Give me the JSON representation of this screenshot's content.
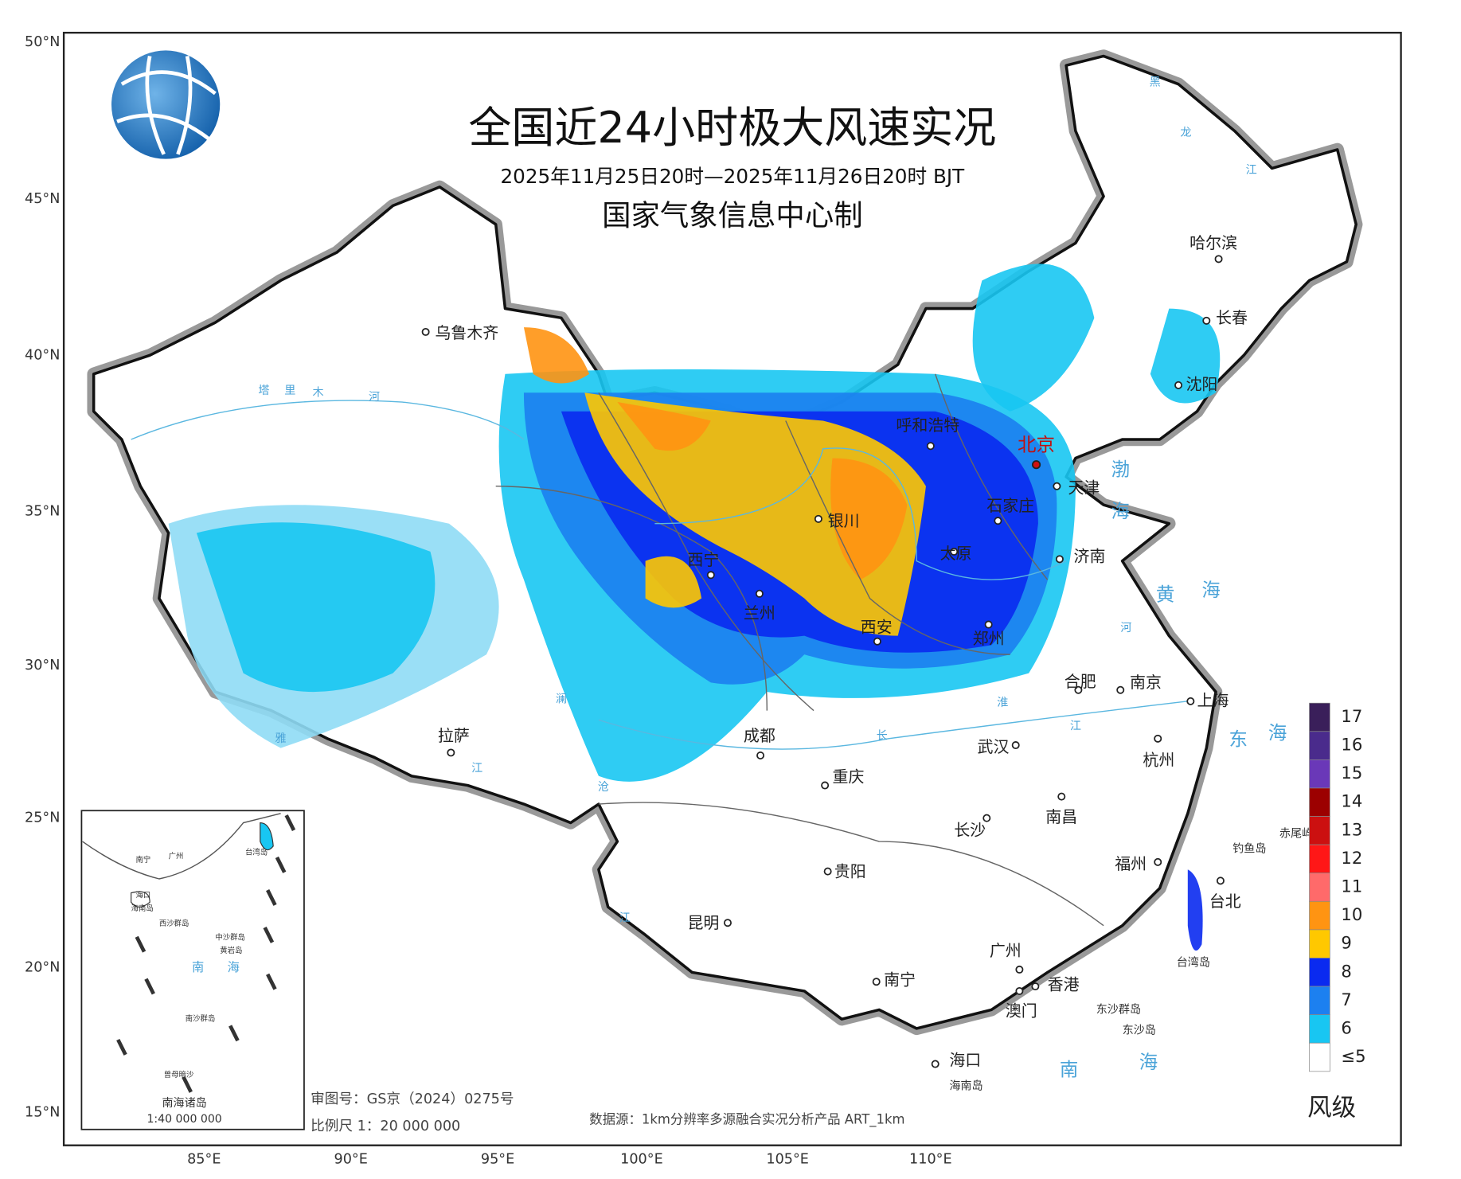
{
  "header": {
    "title": "全国近24小时极大风速实况",
    "subtitle": "2025年11月25日20时—2025年11月26日20时 BJT",
    "producer": "国家气象信息中心制"
  },
  "graticule": {
    "latitudes": [
      "50°N",
      "45°N",
      "40°N",
      "35°N",
      "30°N",
      "25°N",
      "20°N",
      "15°N"
    ],
    "longitudes": [
      "85°E",
      "90°E",
      "95°E",
      "100°E",
      "105°E",
      "110°E"
    ]
  },
  "cities": [
    "乌鲁木齐",
    "拉萨",
    "西宁",
    "兰州",
    "银川",
    "呼和浩特",
    "北京",
    "天津",
    "石家庄",
    "太原",
    "济南",
    "郑州",
    "西安",
    "成都",
    "重庆",
    "贵阳",
    "昆明",
    "南宁",
    "广州",
    "香港",
    "澳门",
    "海口",
    "长沙",
    "南昌",
    "武汉",
    "合肥",
    "南京",
    "上海",
    "杭州",
    "福州",
    "台北",
    "沈阳",
    "长春",
    "哈尔滨"
  ],
  "places": [
    "海南岛",
    "台湾岛",
    "钓鱼岛",
    "赤尾屿",
    "东沙群岛",
    "东沙岛"
  ],
  "seas": [
    "渤",
    "海",
    "黄",
    "海",
    "东",
    "海",
    "南",
    "海"
  ],
  "rivers": [
    "塔",
    "里",
    "木",
    "河",
    "黑",
    "龙",
    "江",
    "长",
    "江",
    "雅",
    "江",
    "澜",
    "沧",
    "江",
    "淮",
    "河"
  ],
  "legend": {
    "title": "风级",
    "levels": [
      {
        "label": "17",
        "color": "#3a1f5a"
      },
      {
        "label": "16",
        "color": "#4a2b8c"
      },
      {
        "label": "15",
        "color": "#6a38b8"
      },
      {
        "label": "14",
        "color": "#9c0000"
      },
      {
        "label": "13",
        "color": "#cc1010"
      },
      {
        "label": "12",
        "color": "#ff1717"
      },
      {
        "label": "11",
        "color": "#ff6a6a"
      },
      {
        "label": "10",
        "color": "#ff9412"
      },
      {
        "label": "9",
        "color": "#ffc800"
      },
      {
        "label": "8",
        "color": "#0a2af0"
      },
      {
        "label": "7",
        "color": "#1c80f0"
      },
      {
        "label": "6",
        "color": "#18c6f2"
      },
      {
        "label": "≤5",
        "color": "#ffffff"
      }
    ]
  },
  "inset": {
    "title": "南海诸岛",
    "scale": "1:40 000 000",
    "labels": [
      "南宁",
      "广州",
      "台湾岛",
      "海口",
      "海南岛",
      "西沙群岛",
      "中沙群岛",
      "黄岩岛",
      "南",
      "海",
      "南沙群岛",
      "曾母暗沙"
    ]
  },
  "footer": {
    "review": "审图号：GS京（2024）0275号",
    "scale": "比例尺 1：20 000 000",
    "source": "数据源：1km分辨率多源融合实况分析产品 ART_1km"
  }
}
